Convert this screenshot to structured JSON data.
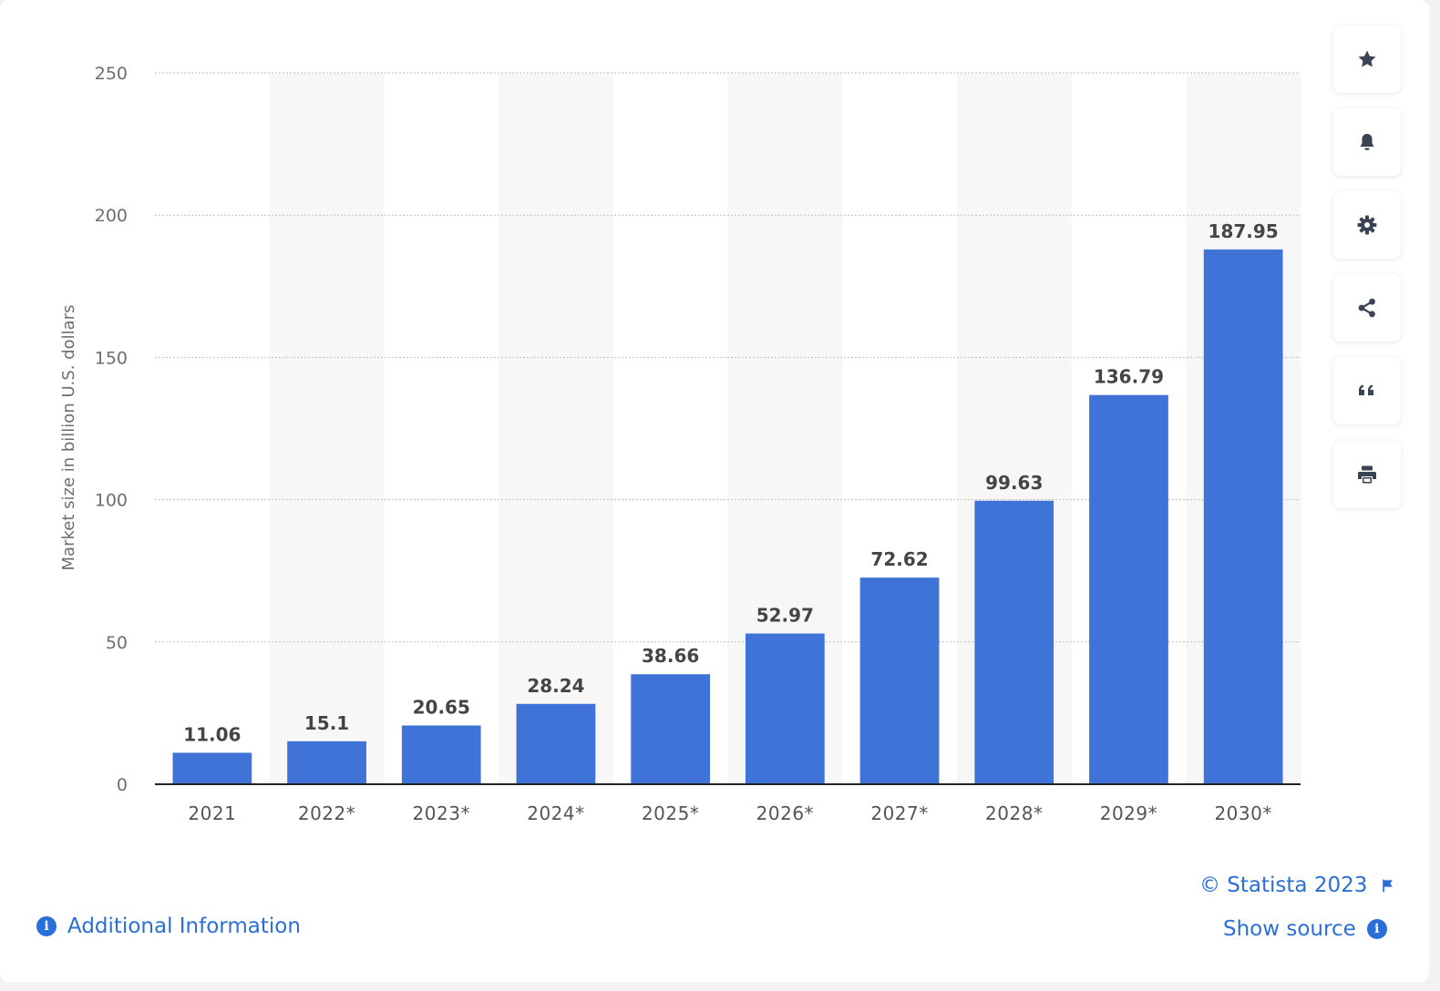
{
  "chart_data": {
    "type": "bar",
    "categories": [
      "2021",
      "2022*",
      "2023*",
      "2024*",
      "2025*",
      "2026*",
      "2027*",
      "2028*",
      "2029*",
      "2030*"
    ],
    "values": [
      11.06,
      15.1,
      20.65,
      28.24,
      38.66,
      52.97,
      72.62,
      99.63,
      136.79,
      187.95
    ],
    "value_labels": [
      "11.06",
      "15.1",
      "20.65",
      "28.24",
      "38.66",
      "52.97",
      "72.62",
      "99.63",
      "136.79",
      "187.95"
    ],
    "title": "",
    "xlabel": "",
    "ylabel": "Market size in billion U.S. dollars",
    "ylim": [
      0,
      250
    ],
    "yticks": [
      0,
      50,
      100,
      150,
      200,
      250
    ],
    "grid": true,
    "bar_color": "#3f73d8"
  },
  "toolbar": {
    "star": "star-icon",
    "bell": "bell-icon",
    "settings": "gear-icon",
    "share": "share-icon",
    "cite": "quote-icon",
    "print": "print-icon"
  },
  "footer": {
    "copyright": "© Statista 2023",
    "show_source": "Show source",
    "additional_info": "Additional Information"
  },
  "colors": {
    "accent": "#2a6ed8",
    "bar": "#3f73d8"
  }
}
